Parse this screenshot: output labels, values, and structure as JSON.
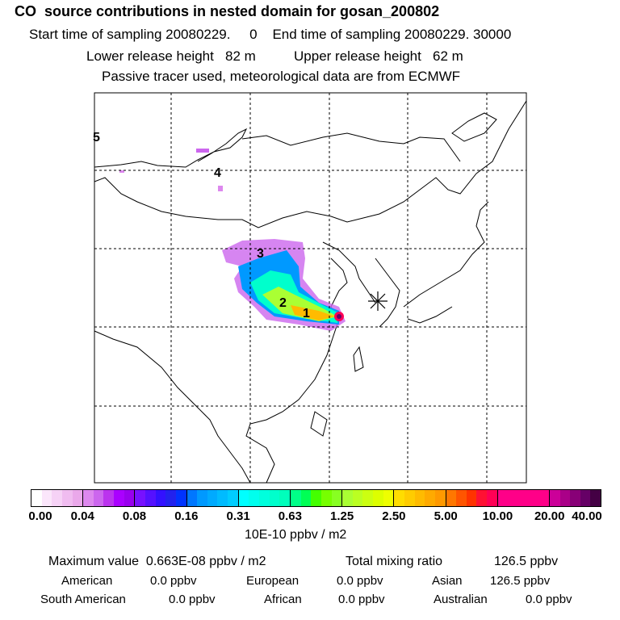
{
  "header": {
    "title": "CO  source contributions in nested domain for gosan_200802",
    "start_label": "Start time of sampling 20080229.     0",
    "end_label": "End time of sampling 20080229. 30000",
    "lower_label": "Lower release height   82 m",
    "upper_label": "Upper release height   62 m",
    "tracer_note": "Passive tracer used, meteorological data are from ECMWF"
  },
  "chart_data": {
    "type": "heatmap",
    "title": "CO  source contributions in nested domain for gosan_200802",
    "colorbar": {
      "ticks": [
        "0.00",
        "0.04",
        "0.08",
        "0.16",
        "0.31",
        "0.63",
        "1.25",
        "2.50",
        "5.00",
        "10.00",
        "20.00",
        "40.00"
      ],
      "unit": "10E-10 ppbv / m2",
      "colors": [
        [
          "#ffffff",
          "#fbe6fb",
          "#f6d2f6",
          "#f0bcf0",
          "#eaa8ea"
        ],
        [
          "#dd88ee",
          "#cc66ee",
          "#bb33ee",
          "#aa00ff",
          "#9900ee"
        ],
        [
          "#7711ff",
          "#5511ff",
          "#3311ff",
          "#2222ee",
          "#0033ff"
        ],
        [
          "#0077ff",
          "#0099ff",
          "#00aaff",
          "#00bbff",
          "#00ccff"
        ],
        [
          "#00ffff",
          "#00ffee",
          "#00ffdd",
          "#00ffcc",
          "#00ffbb"
        ],
        [
          "#00ff88",
          "#00ff55",
          "#44ff00",
          "#77ff00",
          "#88ff22"
        ],
        [
          "#aaff33",
          "#bbff22",
          "#ccff11",
          "#ddff00",
          "#eeff00"
        ],
        [
          "#ffdd00",
          "#ffcc00",
          "#ffbb00",
          "#ffaa00",
          "#ff9900"
        ],
        [
          "#ff7700",
          "#ff5500",
          "#ff3300",
          "#ff1133",
          "#ff0055"
        ],
        [
          "#ff0088",
          "#ff0088",
          "#ff0088",
          "#ff0088",
          "#ff0088"
        ],
        [
          "#cc0099",
          "#aa0088",
          "#880077",
          "#660066",
          "#440044"
        ]
      ]
    },
    "receptor": "gosan (star marker)",
    "source_labels": [
      "1",
      "2",
      "3",
      "4",
      "5"
    ]
  },
  "stats": {
    "max_label": "Maximum value  0.663E-08 ppbv / m2",
    "total_label": "Total mixing ratio",
    "total_value": "126.5 ppbv",
    "regions": [
      {
        "name": "American",
        "value": "0.0 ppbv"
      },
      {
        "name": "European",
        "value": "0.0 ppbv"
      },
      {
        "name": "Asian",
        "value": "126.5 ppbv"
      },
      {
        "name": "South American",
        "value": "0.0 ppbv"
      },
      {
        "name": "African",
        "value": "0.0 ppbv"
      },
      {
        "name": "Australian",
        "value": "0.0 ppbv"
      }
    ]
  }
}
